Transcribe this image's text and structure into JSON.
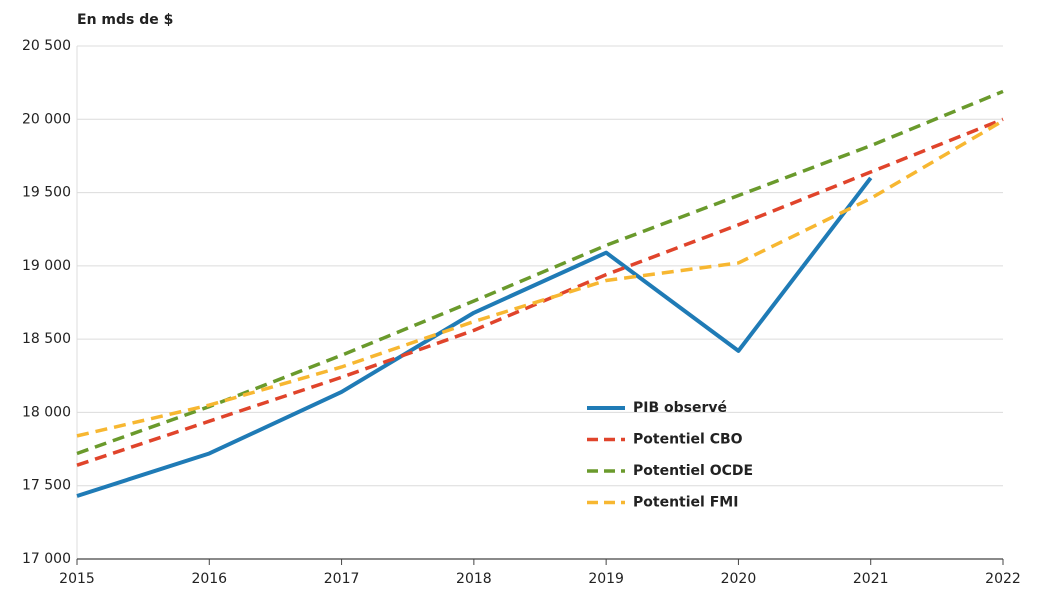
{
  "chart_data": {
    "type": "line",
    "ylabel": "En mds de $",
    "x": [
      2015,
      2016,
      2017,
      2018,
      2019,
      2020,
      2021,
      2022
    ],
    "xlim": [
      2015,
      2022
    ],
    "xticks": [
      2015,
      2016,
      2017,
      2018,
      2019,
      2020,
      2021,
      2022
    ],
    "ylim": [
      17000,
      20500
    ],
    "yticks": [
      {
        "value": 17000,
        "label": "17 000"
      },
      {
        "value": 17500,
        "label": "17 500"
      },
      {
        "value": 18000,
        "label": "18 000"
      },
      {
        "value": 18500,
        "label": "18 500"
      },
      {
        "value": 19000,
        "label": "19 000"
      },
      {
        "value": 19500,
        "label": "19 500"
      },
      {
        "value": 20000,
        "label": "20 000"
      },
      {
        "value": 20500,
        "label": "20 500"
      }
    ],
    "grid": true,
    "series": [
      {
        "name": "PIB observé",
        "color": "#1f7bb6",
        "dashed": false,
        "values": [
          17430,
          17720,
          18140,
          18680,
          19090,
          18420,
          19600,
          null
        ]
      },
      {
        "name": "Potentiel CBO",
        "color": "#e0442b",
        "dashed": true,
        "values": [
          17640,
          17940,
          18240,
          18560,
          18940,
          19280,
          19640,
          20000
        ]
      },
      {
        "name": "Potentiel OCDE",
        "color": "#6a9a2c",
        "dashed": true,
        "values": [
          17720,
          18040,
          18390,
          18760,
          19140,
          19480,
          19820,
          20190
        ]
      },
      {
        "name": "Potentiel FMI",
        "color": "#f7b731",
        "dashed": true,
        "values": [
          17840,
          18050,
          18310,
          18620,
          18900,
          19020,
          19460,
          19990
        ]
      }
    ]
  }
}
